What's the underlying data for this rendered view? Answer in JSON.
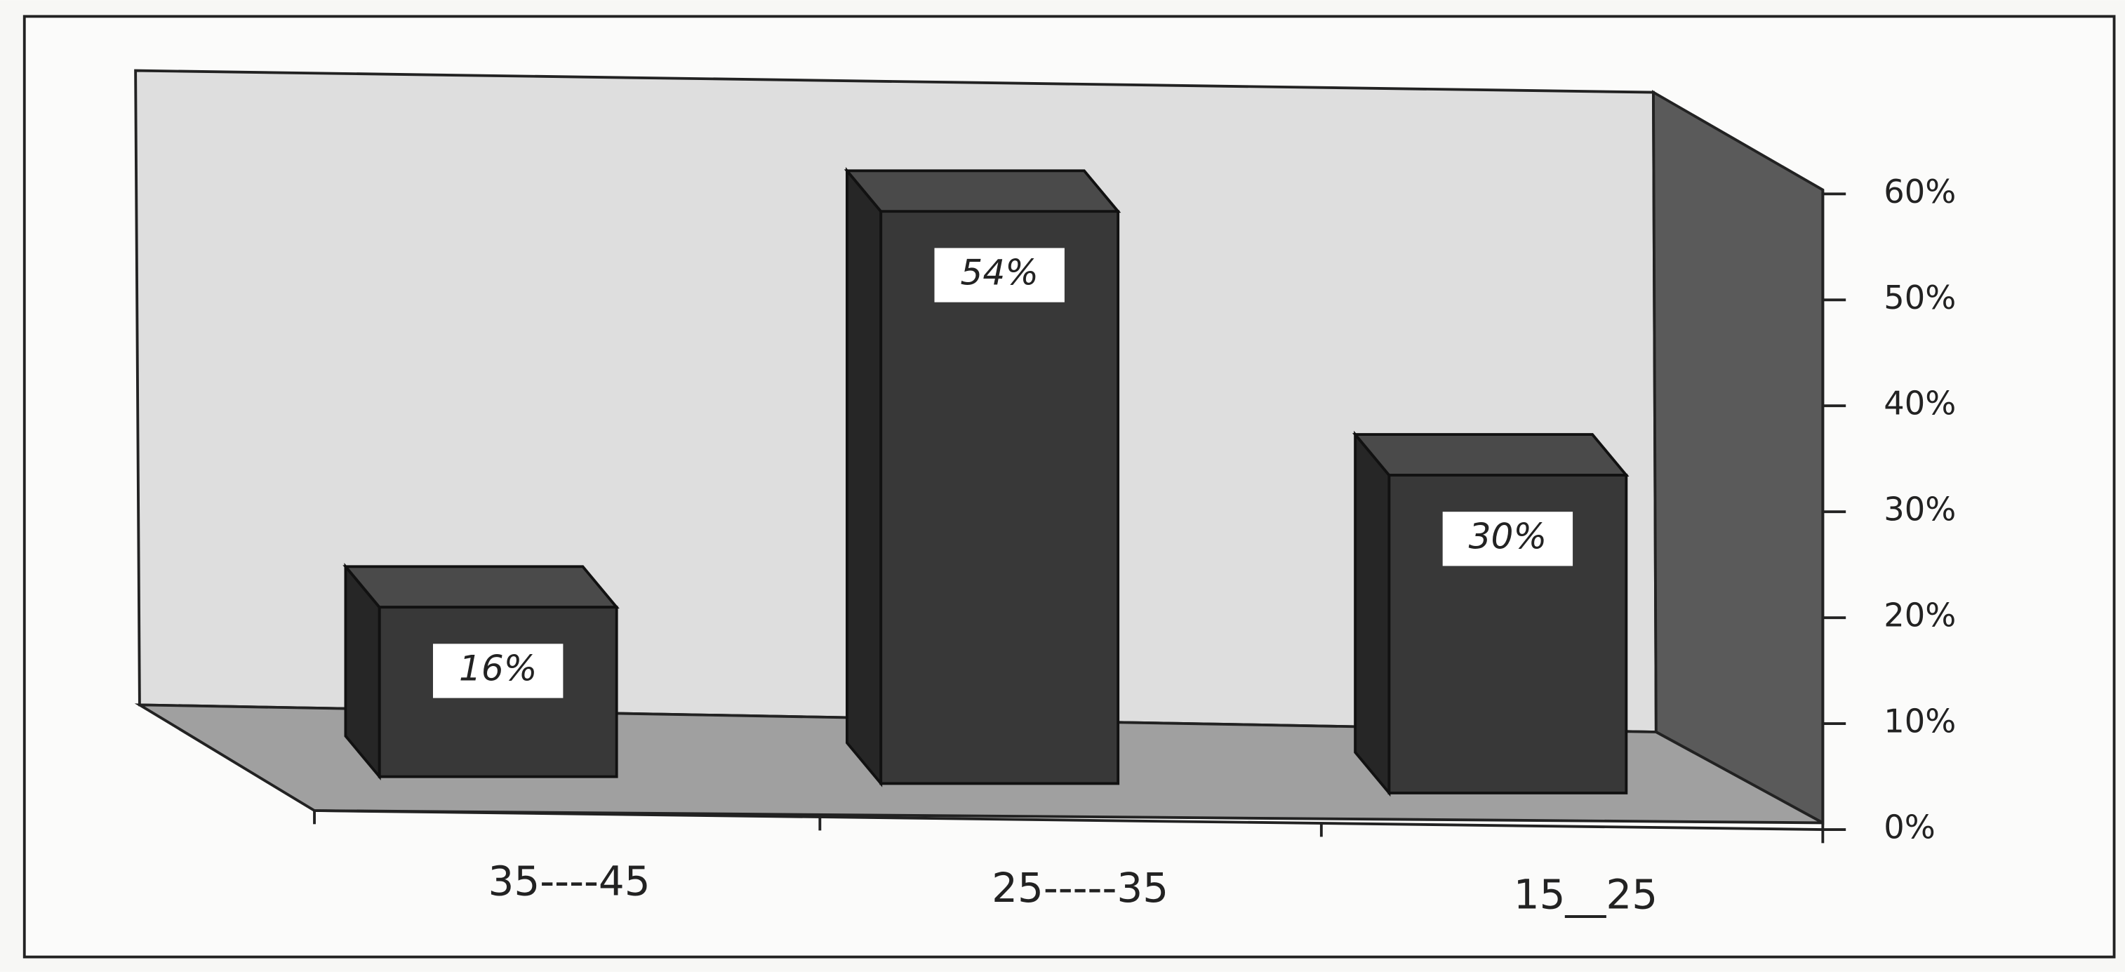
{
  "chart_data": {
    "type": "bar",
    "categories": [
      "35----45",
      "25-----35",
      "15__25"
    ],
    "values": [
      16,
      54,
      30
    ],
    "value_labels": [
      "16%",
      "54%",
      "30%"
    ],
    "ylim": [
      0,
      60
    ],
    "yticks": [
      {
        "value": 0,
        "label": "0%"
      },
      {
        "value": 10,
        "label": "10%"
      },
      {
        "value": 20,
        "label": "20%"
      },
      {
        "value": 30,
        "label": "30%"
      },
      {
        "value": 40,
        "label": "40%"
      },
      {
        "value": 50,
        "label": "50%"
      },
      {
        "value": 60,
        "label": "60%"
      }
    ]
  }
}
